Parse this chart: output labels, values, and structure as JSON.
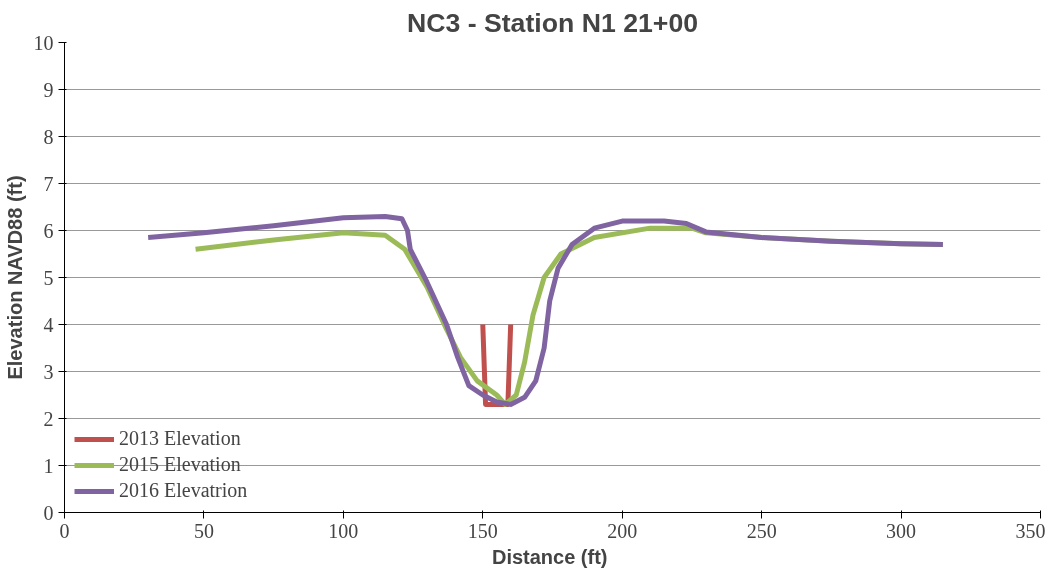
{
  "chart_data": {
    "type": "line",
    "title": "NC3 - Station N1 21+00",
    "xlabel": "Distance  (ft)",
    "ylabel": "Elevation NAVD88 (ft)",
    "xlim": [
      0,
      350
    ],
    "xticks": [
      0,
      50,
      100,
      150,
      200,
      250,
      300,
      350
    ],
    "ylim": [
      0,
      10
    ],
    "yticks": [
      0,
      1,
      2,
      3,
      4,
      5,
      6,
      7,
      8,
      9,
      10
    ],
    "grid": "y",
    "legend": "bottom left",
    "marker": "none",
    "line_style": "solid",
    "series": [
      {
        "name": "2013 Elevation",
        "color": "#c0504d",
        "x": [
          150,
          151,
          159,
          160
        ],
        "values": [
          4.0,
          2.3,
          2.3,
          4.0
        ]
      },
      {
        "name": "2015 Elevation",
        "color": "#9bbb59",
        "x": [
          47,
          75,
          100,
          115,
          122,
          130,
          137,
          142,
          148,
          155,
          158,
          162,
          165,
          168,
          172,
          178,
          190,
          210,
          225,
          230,
          250,
          275,
          300,
          315
        ],
        "values": [
          5.6,
          5.8,
          5.95,
          5.9,
          5.6,
          4.8,
          3.9,
          3.3,
          2.8,
          2.5,
          2.3,
          2.5,
          3.2,
          4.2,
          5.0,
          5.5,
          5.85,
          6.05,
          6.05,
          5.95,
          5.85,
          5.77,
          5.72,
          5.7
        ]
      },
      {
        "name": "2016 Elevatrion",
        "color": "#8064a2",
        "x": [
          30,
          50,
          75,
          100,
          115,
          121,
          123,
          124,
          130,
          137,
          141,
          145,
          150,
          155,
          160,
          165,
          169,
          172,
          174,
          177,
          182,
          190,
          200,
          215,
          223,
          230,
          250,
          275,
          300,
          315
        ],
        "values": [
          5.85,
          5.95,
          6.1,
          6.27,
          6.3,
          6.25,
          6.0,
          5.6,
          4.9,
          4.0,
          3.3,
          2.7,
          2.5,
          2.35,
          2.3,
          2.45,
          2.8,
          3.5,
          4.5,
          5.2,
          5.7,
          6.05,
          6.2,
          6.2,
          6.15,
          5.97,
          5.85,
          5.77,
          5.72,
          5.7
        ]
      }
    ]
  }
}
